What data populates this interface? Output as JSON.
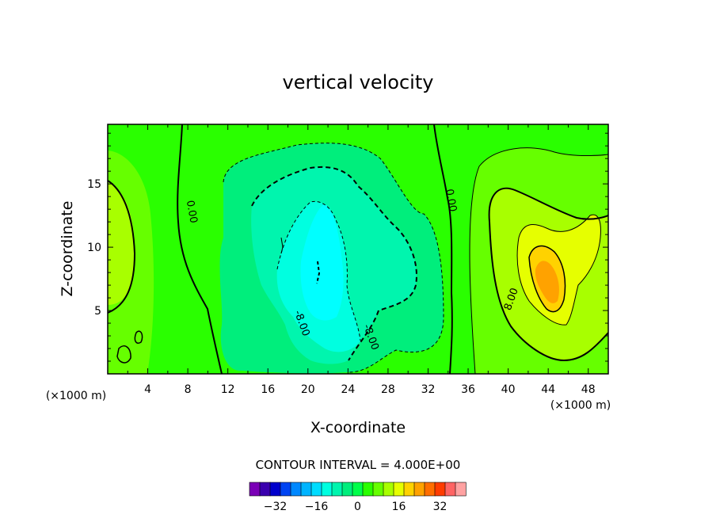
{
  "chart_data": {
    "type": "heatmap",
    "title": "vertical velocity",
    "xlabel": "X-coordinate",
    "ylabel": "Z-coordinate",
    "x_unit": "(×1000 m)",
    "y_unit": "(×1000 m)",
    "xlim": [
      0,
      50
    ],
    "ylim": [
      0,
      19.7
    ],
    "xticks": [
      4,
      8,
      12,
      16,
      20,
      24,
      28,
      32,
      36,
      40,
      44,
      48
    ],
    "yticks": [
      5,
      10,
      15
    ],
    "contour_interval_text": "CONTOUR INTERVAL = 4.000E+00",
    "contour_labels": [
      {
        "text": "0.00",
        "x": 8.4,
        "z": 12.8
      },
      {
        "text": "0.00",
        "x": 34.3,
        "z": 13.7
      },
      {
        "text": "-8.00",
        "x": 19.4,
        "z": 4.0
      },
      {
        "text": "-8.00",
        "x": 26.3,
        "z": 2.9
      },
      {
        "text": "8.00",
        "x": 40.3,
        "z": 5.9
      }
    ],
    "colorbar": {
      "levels": [
        -40,
        -36,
        -32,
        -28,
        -24,
        -20,
        -16,
        -12,
        -8,
        -4,
        0,
        4,
        8,
        12,
        16,
        20,
        24,
        28,
        32,
        36,
        40
      ],
      "tick_values": [
        -32,
        -16,
        0,
        16,
        32
      ],
      "tick_labels": [
        "−32",
        "−16",
        "0",
        "16",
        "32"
      ],
      "colors": [
        "#7a00b6",
        "#3a00ae",
        "#0000cc",
        "#0044f2",
        "#0088ff",
        "#00b4ff",
        "#00dcff",
        "#00ffe0",
        "#00f5ae",
        "#00ee7c",
        "#00ff4a",
        "#2aff00",
        "#66ff00",
        "#a8ff00",
        "#e6ff00",
        "#ffd200",
        "#ffa200",
        "#ff6e00",
        "#ff3c00",
        "#ff6464",
        "#ffa2a2"
      ]
    },
    "field_description": {
      "background": 0,
      "features": [
        {
          "kind": "downdraft",
          "x": 21.5,
          "z": 9,
          "peak": -20
        },
        {
          "kind": "updraft",
          "x": 43.5,
          "z": 8,
          "peak": 22
        },
        {
          "kind": "updraft",
          "x": 1.5,
          "z": 12,
          "peak": 6
        }
      ]
    }
  }
}
